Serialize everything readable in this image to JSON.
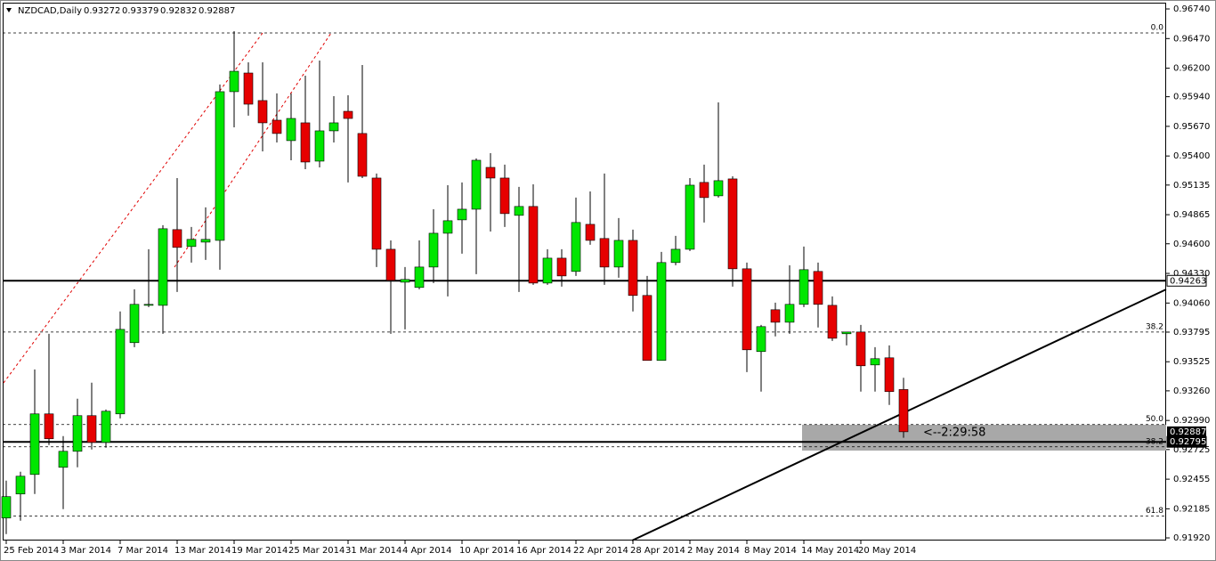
{
  "chart_data": {
    "type": "candlestick",
    "title": "NZDCAD,Daily",
    "categories": [
      "25 Feb 2014",
      null,
      null,
      null,
      "3 Mar 2014",
      null,
      null,
      null,
      "7 Mar 2014",
      null,
      null,
      null,
      "13 Mar 2014",
      null,
      null,
      null,
      "19 Mar 2014",
      null,
      null,
      null,
      "25 Mar 2014",
      null,
      null,
      null,
      "31 Mar 2014",
      null,
      null,
      null,
      "4 Apr 2014",
      null,
      null,
      null,
      "10 Apr 2014",
      null,
      null,
      null,
      "16 Apr 2014",
      null,
      null,
      null,
      "22 Apr 2014",
      null,
      null,
      null,
      "28 Apr 2014",
      null,
      null,
      null,
      "2 May 2014",
      null,
      null,
      null,
      "8 May 2014",
      null,
      null,
      null,
      "14 May 2014",
      null,
      null,
      null,
      "20 May 2014",
      null,
      null,
      null
    ],
    "open": [
      0.92101,
      0.9232,
      0.92498,
      0.9305,
      0.92563,
      0.92709,
      0.93034,
      0.9279,
      0.9305,
      0.93699,
      0.94039,
      0.94039,
      0.94729,
      0.94575,
      0.94615,
      0.94631,
      0.95986,
      0.96156,
      0.95905,
      0.95726,
      0.9554,
      0.95702,
      0.95353,
      0.95629,
      0.95807,
      0.95605,
      0.95199,
      0.9455,
      0.9425,
      0.94202,
      0.94388,
      0.94696,
      0.94818,
      0.94915,
      0.95296,
      0.95199,
      0.94859,
      0.9494,
      0.94242,
      0.94469,
      0.94348,
      0.94777,
      0.94648,
      0.94388,
      0.94631,
      0.94129,
      0.93537,
      0.94429,
      0.9455,
      0.95159,
      0.95037,
      0.95191,
      0.94372,
      0.93618,
      0.93999,
      0.93885,
      0.94048,
      0.94348,
      0.94039,
      0.9378,
      0.93796,
      0.93496,
      0.93561,
      0.93272
    ],
    "high": [
      0.92442,
      0.92523,
      0.93455,
      0.9378,
      0.92847,
      0.93188,
      0.93334,
      0.9309,
      0.93983,
      0.94185,
      0.9455,
      0.94769,
      0.95199,
      0.94753,
      0.94932,
      0.96051,
      0.96537,
      0.96253,
      0.96253,
      0.9597,
      0.9597,
      0.96132,
      0.9627,
      0.95945,
      0.95953,
      0.96229,
      0.9524,
      0.94631,
      0.94388,
      0.94631,
      0.94915,
      0.95134,
      0.95159,
      0.95378,
      0.95426,
      0.95321,
      0.95118,
      0.95142,
      0.9455,
      0.9455,
      0.95021,
      0.95077,
      0.9524,
      0.94834,
      0.94729,
      0.94307,
      0.94526,
      0.94672,
      0.95199,
      0.95321,
      0.95888,
      0.95215,
      0.94429,
      0.93861,
      0.94064,
      0.94404,
      0.94575,
      0.94429,
      0.9412,
      0.93796,
      0.93861,
      0.93658,
      0.93674,
      0.93379
    ],
    "low": [
      0.91955,
      0.92077,
      0.9232,
      0.92766,
      0.92182,
      0.92563,
      0.92726,
      0.92742,
      0.93009,
      0.93658,
      0.94023,
      0.9378,
      0.94161,
      0.94429,
      0.94453,
      0.94364,
      0.95661,
      0.95767,
      0.95442,
      0.95523,
      0.95361,
      0.9528,
      0.95296,
      0.95523,
      0.95159,
      0.95199,
      0.94388,
      0.9378,
      0.9382,
      0.94185,
      0.94242,
      0.9412,
      0.9451,
      0.94323,
      0.94712,
      0.94753,
      0.94161,
      0.94226,
      0.94226,
      0.9421,
      0.94307,
      0.94591,
      0.94226,
      0.94291,
      0.93983,
      0.93537,
      0.93537,
      0.94404,
      0.94534,
      0.94794,
      0.95021,
      0.9421,
      0.93431,
      0.93253,
      0.93756,
      0.9378,
      0.94023,
      0.93837,
      0.93715,
      0.93674,
      0.93253,
      0.93253,
      0.93131,
      0.92832
    ],
    "close": [
      0.92296,
      0.92482,
      0.9305,
      0.92823,
      0.92709,
      0.93034,
      0.9279,
      0.93074,
      0.9382,
      0.94048,
      0.94048,
      0.94737,
      0.94567,
      0.9464,
      0.9464,
      0.95986,
      0.96172,
      0.95872,
      0.95702,
      0.95605,
      0.95742,
      0.95345,
      0.95629,
      0.95702,
      0.95742,
      0.95215,
      0.9455,
      0.94266,
      0.94275,
      0.94388,
      0.94696,
      0.9481,
      0.94915,
      0.95361,
      0.95199,
      0.94875,
      0.9494,
      0.94242,
      0.94469,
      0.94307,
      0.94794,
      0.94631,
      0.94388,
      0.94631,
      0.94129,
      0.93537,
      0.94429,
      0.9455,
      0.95134,
      0.95021,
      0.95175,
      0.94372,
      0.93634,
      0.93845,
      0.93885,
      0.94048,
      0.94364,
      0.94048,
      0.93739,
      0.93796,
      0.93488,
      0.93553,
      0.93253,
      0.92887
    ],
    "up_color": "#00e600",
    "down_color": "#e60000",
    "ylim": [
      0.91896,
      0.96797
    ],
    "yticks": [
      {
        "value": 0.9674,
        "label": "0.96740"
      },
      {
        "value": 0.9647,
        "label": "0.96470"
      },
      {
        "value": 0.962,
        "label": "0.96200"
      },
      {
        "value": 0.9594,
        "label": "0.95940"
      },
      {
        "value": 0.9567,
        "label": "0.95670"
      },
      {
        "value": 0.954,
        "label": "0.95400"
      },
      0.95135,
      0.94865,
      {
        "value": 0.946,
        "label": "0.94600"
      },
      {
        "value": 0.9433,
        "label": "0.94330"
      },
      {
        "value": 0.9406,
        "label": "0.94060"
      },
      0.93795,
      0.93525,
      {
        "value": 0.9326,
        "label": "0.93260"
      },
      {
        "value": 0.9299,
        "label": "0.92990"
      },
      0.92725,
      0.92455,
      0.92185,
      {
        "value": 0.9192,
        "label": "0.91920"
      }
    ],
    "horizontal_lines": [
      0.94263,
      0.92795
    ],
    "fib_levels": [
      {
        "label": "0.0",
        "value": 0.96521
      },
      {
        "label": "38.2",
        "value": 0.93796
      },
      {
        "label": "50.0",
        "value": 0.92953
      },
      {
        "label": "38.2",
        "value": 0.9275
      },
      {
        "label": "61.8",
        "value": 0.92118
      }
    ],
    "countdown": "<--2:29:58",
    "grid": false
  }
}
